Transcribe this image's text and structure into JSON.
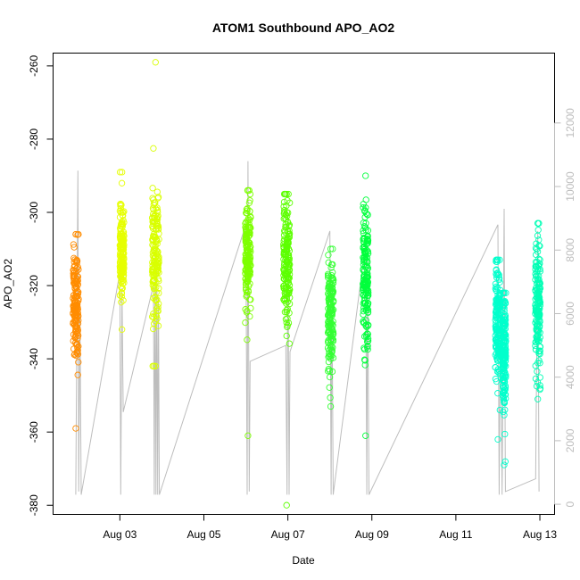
{
  "chart_data": {
    "type": "scatter",
    "title": "ATOM1 Southbound APO_AO2",
    "xlabel": "Date",
    "ylabel": "APO_AO2",
    "x_ticks": [
      "Aug 03",
      "Aug 05",
      "Aug 07",
      "Aug 09",
      "Aug 11",
      "Aug 13"
    ],
    "x_tick_days": [
      3,
      5,
      7,
      9,
      11,
      13
    ],
    "x_range_days": [
      1.41,
      13.35
    ],
    "y_ticks": [
      -260,
      -280,
      -300,
      -320,
      -340,
      -360,
      -380
    ],
    "ylim": [
      -382.5,
      -256.5
    ],
    "y2_ticks": [
      0,
      2000,
      4000,
      6000,
      8000,
      10000,
      12000
    ],
    "y2lim": [
      -320,
      14200
    ],
    "grid": false,
    "line_color": "#bdbdbd",
    "point_clusters": [
      {
        "day": 1.95,
        "width": 0.13,
        "center": -325,
        "spread": 8,
        "y_min": -359,
        "y_max": -306,
        "color": "#ff8c00"
      },
      {
        "day": 3.05,
        "width": 0.1,
        "center": -310,
        "spread": 6,
        "y_min": -332,
        "y_max": -289,
        "color": "#e6ff00"
      },
      {
        "day": 3.85,
        "width": 0.16,
        "center": -312,
        "spread": 9,
        "y_min": -342,
        "y_max": -259,
        "color": "#d9ff00"
      },
      {
        "day": 6.05,
        "width": 0.13,
        "center": -312,
        "spread": 8,
        "y_min": -361,
        "y_max": -294,
        "color": "#7dff00"
      },
      {
        "day": 6.97,
        "width": 0.15,
        "center": -315,
        "spread": 9,
        "y_min": -380,
        "y_max": -295,
        "color": "#5cff00"
      },
      {
        "day": 8.02,
        "width": 0.13,
        "center": -328,
        "spread": 8,
        "y_min": -353,
        "y_max": -310,
        "color": "#33ff33"
      },
      {
        "day": 8.85,
        "width": 0.13,
        "center": -318,
        "spread": 10,
        "y_min": -361,
        "y_max": -290,
        "color": "#00ff3c"
      },
      {
        "day": 12.0,
        "width": 0.12,
        "center": -330,
        "spread": 8,
        "y_min": -362,
        "y_max": -313,
        "color": "#00ffcc"
      },
      {
        "day": 12.15,
        "width": 0.08,
        "center": -338,
        "spread": 8,
        "y_min": -369,
        "y_max": -322,
        "color": "#00ffcc"
      },
      {
        "day": 12.95,
        "width": 0.12,
        "center": -325,
        "spread": 9,
        "y_min": -351,
        "y_max": -303,
        "color": "#00ffb5"
      }
    ],
    "secondary_line": [
      [
        1.95,
        300
      ],
      [
        1.98,
        6200
      ],
      [
        2.0,
        10500
      ],
      [
        2.02,
        400
      ],
      [
        2.05,
        6000
      ],
      [
        2.08,
        300
      ],
      [
        3.0,
        7300
      ],
      [
        3.02,
        300
      ],
      [
        3.05,
        6800
      ],
      [
        3.08,
        2900
      ],
      [
        3.8,
        6900
      ],
      [
        3.82,
        300
      ],
      [
        3.84,
        8000
      ],
      [
        3.86,
        300
      ],
      [
        3.88,
        7500
      ],
      [
        3.9,
        300
      ],
      [
        3.92,
        6500
      ],
      [
        3.94,
        300
      ],
      [
        6.0,
        8800
      ],
      [
        6.03,
        300
      ],
      [
        6.05,
        10800
      ],
      [
        6.08,
        400
      ],
      [
        6.1,
        4500
      ],
      [
        6.95,
        5000
      ],
      [
        6.98,
        300
      ],
      [
        7.0,
        9200
      ],
      [
        7.03,
        300
      ],
      [
        7.05,
        4800
      ],
      [
        8.0,
        8600
      ],
      [
        8.03,
        300
      ],
      [
        8.05,
        7000
      ],
      [
        8.08,
        300
      ],
      [
        8.85,
        8200
      ],
      [
        8.88,
        300
      ],
      [
        8.9,
        7700
      ],
      [
        8.93,
        300
      ],
      [
        12.0,
        8800
      ],
      [
        12.03,
        300
      ],
      [
        12.06,
        6500
      ],
      [
        12.1,
        300
      ],
      [
        12.15,
        9300
      ],
      [
        12.18,
        400
      ],
      [
        12.9,
        800
      ],
      [
        12.95,
        8600
      ],
      [
        12.98,
        400
      ]
    ]
  }
}
